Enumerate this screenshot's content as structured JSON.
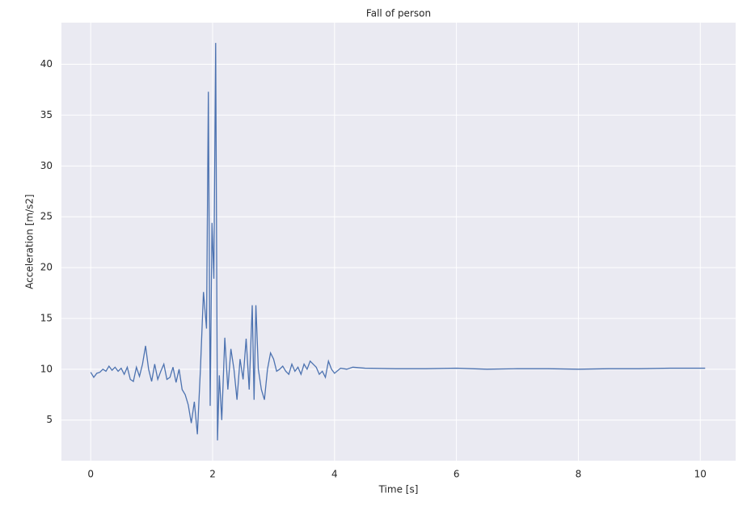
{
  "chart_data": {
    "type": "line",
    "title": "Fall of person",
    "x_label": "Time [s]",
    "y_label": "Acceleration [m/s2]",
    "x": [
      0,
      0.05,
      0.1,
      0.15,
      0.2,
      0.25,
      0.3,
      0.35,
      0.4,
      0.45,
      0.5,
      0.55,
      0.6,
      0.65,
      0.7,
      0.75,
      0.8,
      0.85,
      0.9,
      0.95,
      1.0,
      1.05,
      1.1,
      1.15,
      1.2,
      1.25,
      1.3,
      1.35,
      1.4,
      1.45,
      1.5,
      1.55,
      1.6,
      1.65,
      1.7,
      1.75,
      1.8,
      1.85,
      1.9,
      1.93,
      1.96,
      1.99,
      2.02,
      2.05,
      2.08,
      2.11,
      2.15,
      2.2,
      2.25,
      2.3,
      2.35,
      2.4,
      2.45,
      2.5,
      2.55,
      2.6,
      2.65,
      2.68,
      2.71,
      2.75,
      2.8,
      2.85,
      2.9,
      2.95,
      3.0,
      3.05,
      3.1,
      3.15,
      3.2,
      3.25,
      3.3,
      3.35,
      3.4,
      3.45,
      3.5,
      3.55,
      3.6,
      3.65,
      3.7,
      3.75,
      3.8,
      3.85,
      3.9,
      3.95,
      4.0,
      4.1,
      4.2,
      4.3,
      4.5,
      5.0,
      5.5,
      6.0,
      6.5,
      7.0,
      7.5,
      8.0,
      8.5,
      9.0,
      9.5,
      10.08
    ],
    "series": [
      {
        "name": "acceleration",
        "color": "#4c72b0",
        "values": [
          9.7,
          9.2,
          9.6,
          9.7,
          10.0,
          9.8,
          10.3,
          9.9,
          10.2,
          9.8,
          10.1,
          9.5,
          10.2,
          9.0,
          8.8,
          10.2,
          9.3,
          10.5,
          12.3,
          10.0,
          8.8,
          10.5,
          9.0,
          9.8,
          10.5,
          9.0,
          9.2,
          10.2,
          8.7,
          10.0,
          8.0,
          7.5,
          6.5,
          4.7,
          6.8,
          3.6,
          10.0,
          17.6,
          14.0,
          37.3,
          6.4,
          24.4,
          18.9,
          42.1,
          3.0,
          9.4,
          5.0,
          13.1,
          8.0,
          12.0,
          10.0,
          7.0,
          11.0,
          9.0,
          13.0,
          8.0,
          16.3,
          7.0,
          16.3,
          10.0,
          8.0,
          7.0,
          10.0,
          11.6,
          11.0,
          9.8,
          10.0,
          10.3,
          9.8,
          9.5,
          10.5,
          9.8,
          10.2,
          9.5,
          10.5,
          10.0,
          10.8,
          10.5,
          10.2,
          9.5,
          9.8,
          9.2,
          10.8,
          10.0,
          9.6,
          10.1,
          10.0,
          10.2,
          10.1,
          10.05,
          10.05,
          10.1,
          10.0,
          10.05,
          10.05,
          10.0,
          10.05,
          10.05,
          10.1,
          10.1
        ]
      }
    ],
    "xlim": [
      -0.48,
      10.58
    ],
    "ylim": [
      1.0,
      44.1
    ],
    "xticks": [
      0,
      2,
      4,
      6,
      8,
      10
    ],
    "yticks": [
      5,
      10,
      15,
      20,
      25,
      30,
      35,
      40
    ],
    "grid": true
  }
}
